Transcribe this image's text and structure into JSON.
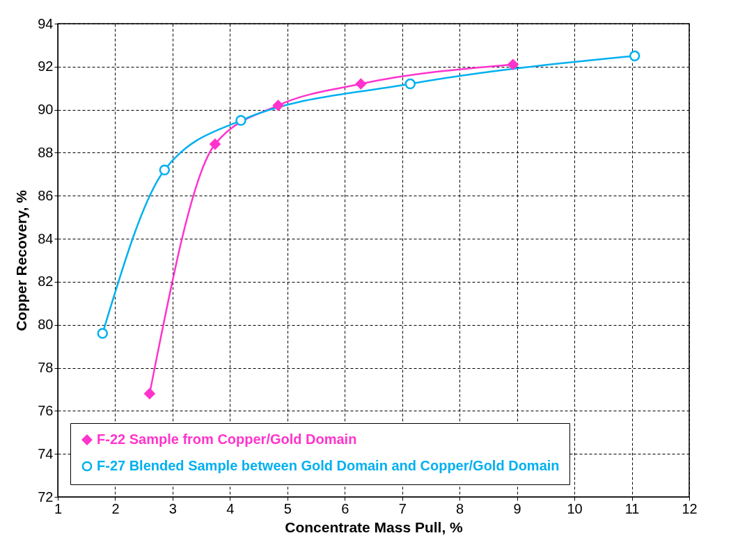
{
  "chart_data": {
    "type": "line",
    "xlabel": "Concentrate Mass Pull, %",
    "ylabel": "Copper Recovery, %",
    "xlim": [
      1,
      12
    ],
    "xticks": [
      1,
      2,
      3,
      4,
      5,
      6,
      7,
      8,
      9,
      10,
      11,
      12
    ],
    "ylim": [
      72,
      94
    ],
    "yticks": [
      72,
      74,
      76,
      78,
      80,
      82,
      84,
      86,
      88,
      90,
      92,
      94
    ],
    "grid": true,
    "legend": "bottom",
    "line_style": "solid",
    "series": [
      {
        "name": "F-22 Sample from Copper/Gold Domain",
        "color": "#ff33cc",
        "marker": "diamond",
        "x": [
          2.6,
          3.74,
          4.84,
          6.28,
          8.93
        ],
        "values": [
          76.8,
          88.4,
          90.2,
          91.2,
          92.1
        ]
      },
      {
        "name": "F-27 Blended Sample between Gold Domain and Copper/Gold Domain",
        "color": "#00b0f0",
        "marker": "circle",
        "x": [
          1.78,
          2.86,
          4.19,
          7.14,
          11.05
        ],
        "values": [
          79.6,
          87.2,
          89.5,
          91.2,
          92.5
        ]
      }
    ]
  }
}
